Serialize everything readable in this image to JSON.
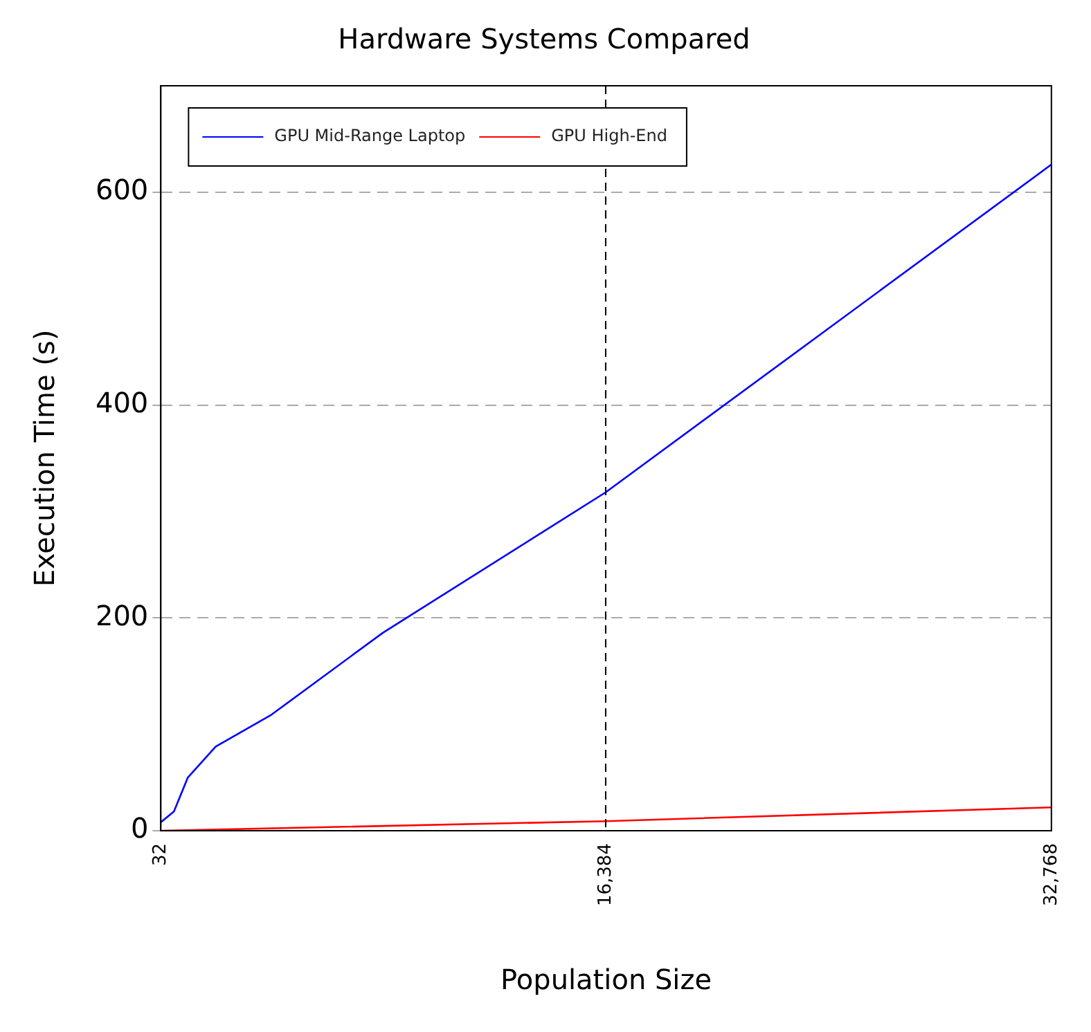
{
  "chart_data": {
    "type": "line",
    "title": "Hardware Systems Compared",
    "xlabel": "Population Size",
    "ylabel": "Execution Time (s)",
    "xlim": [
      32,
      32768
    ],
    "xticks": [
      32,
      {
        "value": 16384,
        "label": "16,384"
      },
      {
        "value": 32768,
        "label": "32,768"
      }
    ],
    "ylim": [
      0,
      700
    ],
    "yticks": [
      0,
      200,
      400,
      600
    ],
    "grid": "y",
    "legend": "top left",
    "marker": "none",
    "line_style": "solid",
    "ref_lines": [
      {
        "axis": "x",
        "value": 16384,
        "color": "#000000",
        "line_style": "dashed"
      }
    ],
    "series": [
      {
        "name": "GPU Mid-Range Laptop",
        "color": "#0000ff",
        "x": [
          32,
          512,
          1024,
          2048,
          4096,
          8192,
          16384,
          32768
        ],
        "values": [
          8,
          18,
          50,
          79,
          109,
          186,
          318,
          626
        ]
      },
      {
        "name": "GPU High-End",
        "color": "#ff0000",
        "x": [
          32,
          16384,
          32768
        ],
        "values": [
          0,
          9,
          22
        ]
      }
    ]
  }
}
